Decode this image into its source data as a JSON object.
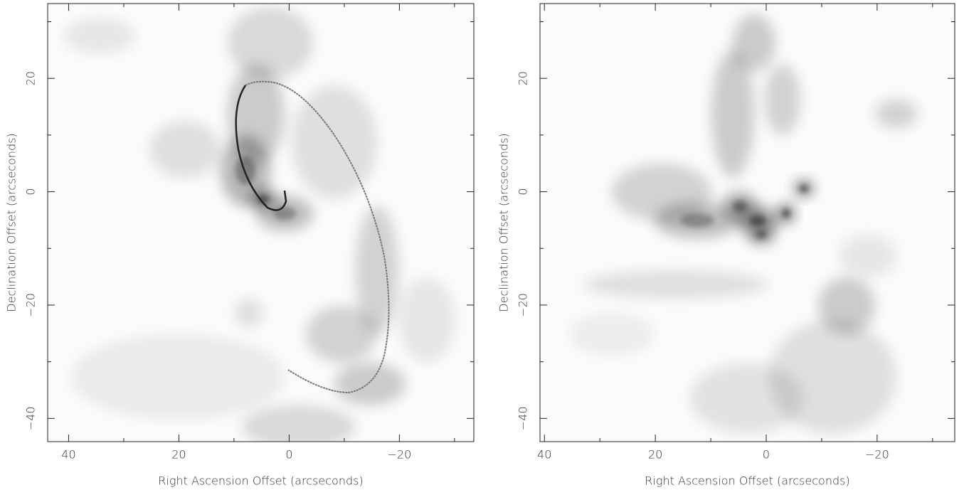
{
  "chart_data": [
    {
      "type": "image",
      "x_label": "Right Ascension Offset (arcseconds)",
      "y_label": "Declination Offset (arcseconds)",
      "xlim": [
        43.8,
        -33.5
      ],
      "ylim": [
        -44.1,
        33.2
      ],
      "xticks": [
        40,
        20,
        0,
        {
          "value": -20,
          "label": "−20"
        }
      ],
      "yticks": [
        {
          "value": -40,
          "label": "−40"
        },
        {
          "value": -20,
          "label": "−20"
        },
        0,
        20
      ],
      "xminor_ticks": [
        30,
        10,
        -10,
        -30
      ],
      "yminor_ticks": [
        -30,
        -10,
        10,
        30
      ]
    },
    {
      "type": "image",
      "x_label": "Right Ascension Offset (arcseconds)",
      "y_label": "Declination Offset (arcseconds)",
      "xlim": [
        40.8,
        -34
      ],
      "ylim": [
        -44.1,
        33.2
      ],
      "xticks": [
        40,
        20,
        0,
        {
          "value": -20,
          "label": "−20"
        }
      ],
      "yticks": [
        {
          "value": -40,
          "label": "−40"
        },
        {
          "value": -20,
          "label": "−20"
        },
        0,
        20
      ],
      "xminor_ticks": [
        30,
        10,
        -10,
        -30
      ],
      "yminor_ticks": [
        -30,
        -10,
        10,
        30
      ]
    }
  ]
}
